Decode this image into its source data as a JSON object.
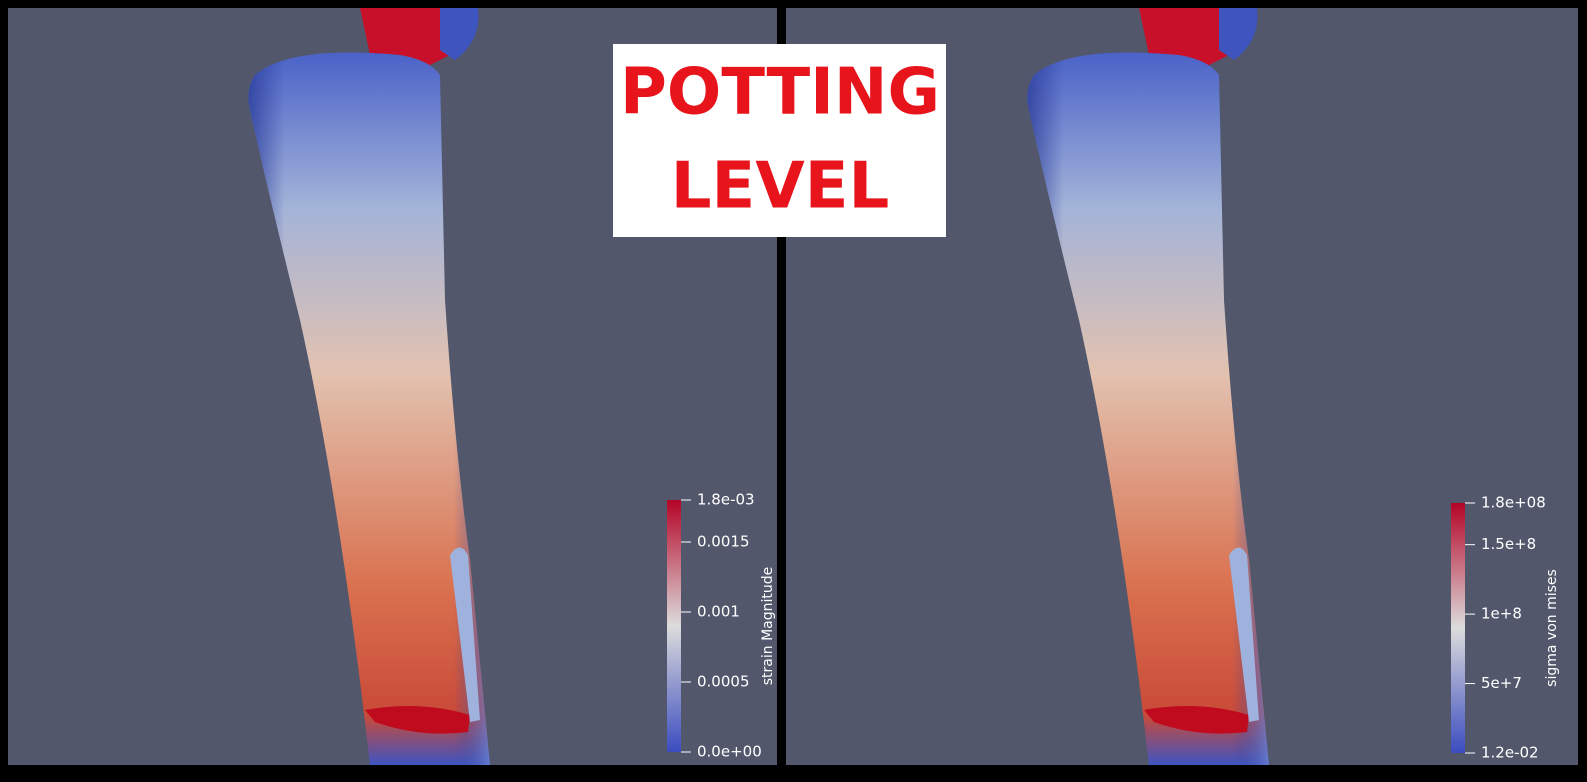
{
  "banner": {
    "lines": [
      "POTTING",
      "LEVEL"
    ]
  },
  "views": [
    {
      "colorbar": {
        "title": "strain Magnitude",
        "range": [
          {
            "value": 0,
            "label": "0.0e+00"
          },
          {
            "value": 0.0018,
            "label": "1.8e-03"
          }
        ],
        "ticks": [
          0.0005,
          0.001,
          0.0015
        ]
      }
    },
    {
      "colorbar": {
        "title": "sigma von mises",
        "range": [
          {
            "value": 0.012,
            "label": "1.2e-02"
          },
          {
            "value": 180000000,
            "label": "1.8e+08"
          }
        ],
        "ticks": [
          {
            "value": 50000000,
            "label": "5e+7"
          },
          {
            "value": 100000000,
            "label": "1e+8"
          },
          {
            "value": 150000000,
            "label": "1.5e+8"
          }
        ]
      }
    }
  ]
}
